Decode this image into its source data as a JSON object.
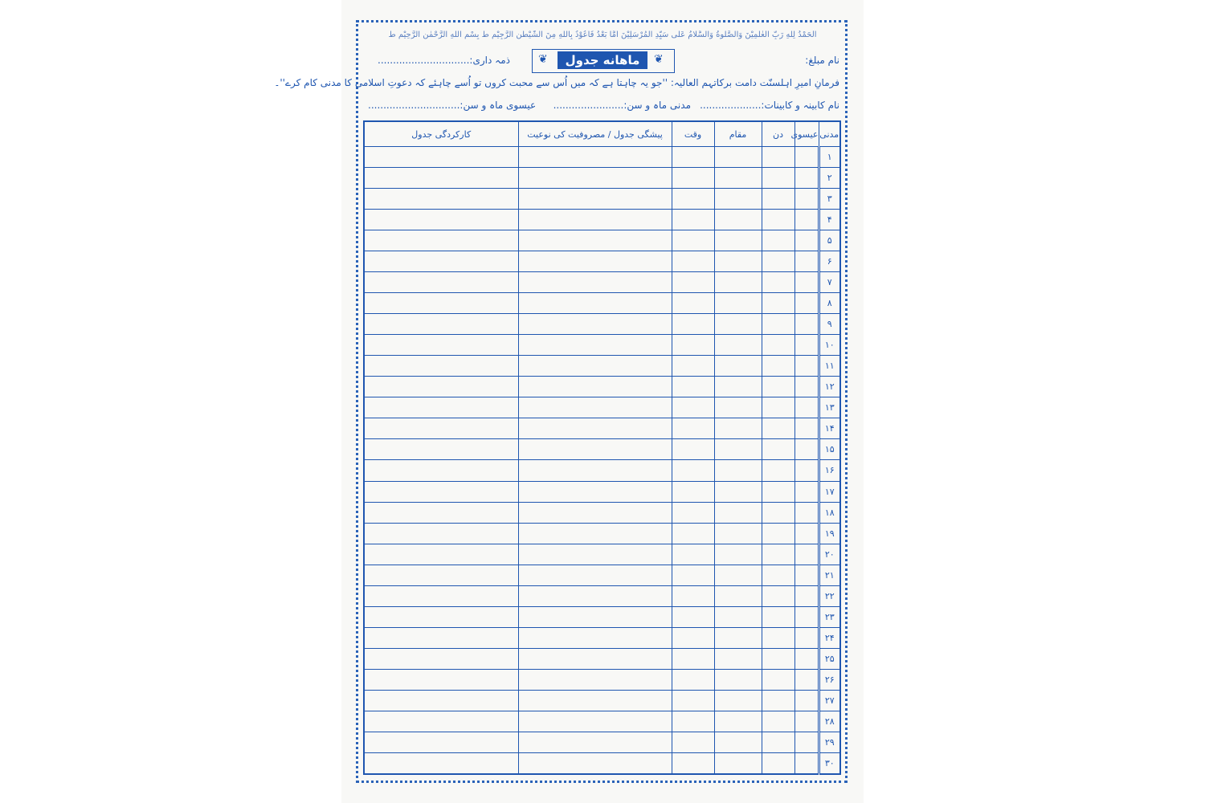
{
  "header": {
    "bismillah": "اَلْحَمْدُ لِلّٰهِ رَبِّ الْعٰلَمِيْنَ وَالصَّلٰوةُ وَالسَّلَامُ عَلٰى سَيِّدِ الْمُرْسَلِيْنَ اَمَّا بَعْدُ فَاَعُوْذُ بِاللّٰهِ مِنَ الشَّيْطٰنِ الرَّجِيْمِ ط بِسْمِ اللّٰهِ الرَّحْمٰنِ الرَّحِيْمِ ط",
    "preacher": "نام مبلغ:",
    "title": "ماهانه جدول",
    "responsibility": "ذمہ داری:..............................",
    "saying": "فرمانِ امیرِ اہلسنّت دامت برکاتہم العالیہ: ''جو یہ چاہتا ہے کہ میں اُس سے محبت کروں تو اُسے چاہئے کہ دعوتِ اسلامی کا مدنی کام کرے''۔",
    "cabinet": "نام کابینہ و کابینات:....................",
    "madani_month": "مدنی ماہ و سن:.......................",
    "gregorian_month": "عیسوی ماہ و سن:.............................."
  },
  "table": {
    "columns": [
      "مدنی",
      "عیسوی",
      "دن",
      "مقام",
      "وقت",
      "پیشگی جدول / مصروفیت کی نوعیت",
      "کارکردگی جدول"
    ],
    "rows": [
      [
        "۱"
      ],
      [
        "۲"
      ],
      [
        "۳"
      ],
      [
        "۴"
      ],
      [
        "۵"
      ],
      [
        "۶"
      ],
      [
        "۷"
      ],
      [
        "۸"
      ],
      [
        "۹"
      ],
      [
        "۱۰"
      ],
      [
        "۱۱"
      ],
      [
        "۱۲"
      ],
      [
        "۱۳"
      ],
      [
        "۱۴"
      ],
      [
        "۱۵"
      ],
      [
        "۱۶"
      ],
      [
        "۱۷"
      ],
      [
        "۱۸"
      ],
      [
        "۱۹"
      ],
      [
        "۲۰"
      ],
      [
        "۲۱"
      ],
      [
        "۲۲"
      ],
      [
        "۲۳"
      ],
      [
        "۲۴"
      ],
      [
        "۲۵"
      ],
      [
        "۲۶"
      ],
      [
        "۲۷"
      ],
      [
        "۲۸"
      ],
      [
        "۲۹"
      ],
      [
        "۳۰"
      ]
    ]
  }
}
